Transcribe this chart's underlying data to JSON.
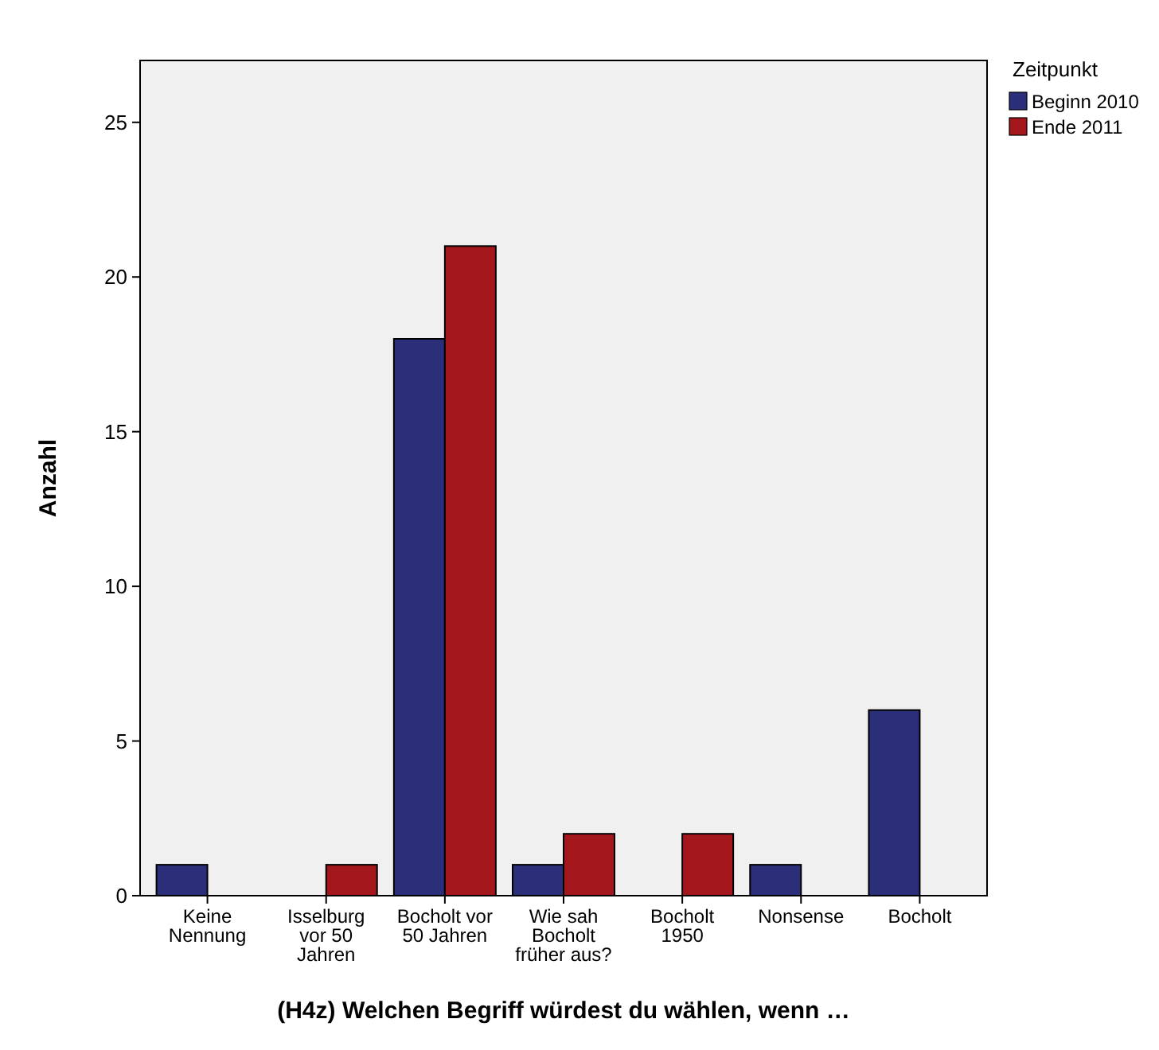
{
  "chart_data": {
    "type": "bar",
    "xlabel": "(H4z) Welchen Begriff würdest du wählen, wenn …",
    "ylabel": "Anzahl",
    "legend_title": "Zeitpunkt",
    "legend": "top right",
    "grid": false,
    "categories": [
      "Keine Nennung",
      "Isselburg vor 50 Jahren",
      "Bocholt vor 50 Jahren",
      "Wie sah Bocholt früher aus?",
      "Bocholt 1950",
      "Nonsense",
      "Bocholt"
    ],
    "series": [
      {
        "name": "Beginn 2010",
        "color": "#2b2f7a",
        "values": [
          1,
          null,
          18,
          1,
          null,
          1,
          6
        ]
      },
      {
        "name": "Ende 2011",
        "color": "#a3161c",
        "values": [
          null,
          1,
          21,
          2,
          2,
          null,
          null
        ]
      }
    ],
    "ylim": [
      0,
      27
    ],
    "yticks": [
      0,
      5,
      10,
      15,
      20,
      25
    ]
  }
}
